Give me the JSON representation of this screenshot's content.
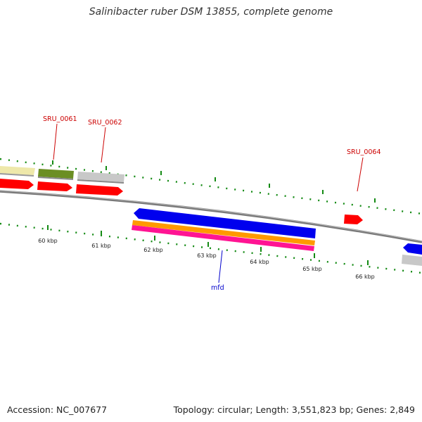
{
  "title": "Salinibacter ruber DSM 13855, complete genome",
  "footer": {
    "accession": "Accession: NC_007677",
    "summary": "Topology: circular; Length: 3,551,823 bp; Genes: 2,849"
  },
  "colors": {
    "plus_cds": "#ff0000",
    "minus_cds": "#0000ee",
    "orange_track": "#ff9900",
    "pink_track": "#ff1493",
    "olive_track": "#6b8e23",
    "khaki_track": "#eee8aa",
    "gray_track": "#c8c8c8",
    "tick": "#138a13",
    "backbone": "#7a7a7a",
    "plus_label": "#cc0000",
    "minus_label": "#0000cc"
  },
  "scale": {
    "unit": "kbp",
    "labels": [
      "60 kbp",
      "61 kbp",
      "62 kbp",
      "63 kbp",
      "64 kbp",
      "65 kbp",
      "66 kbp"
    ]
  },
  "genes": {
    "plus_labels": [
      "SRU_0061",
      "SRU_0062",
      "SRU_0064"
    ],
    "minus_labels": [
      "mfd"
    ]
  }
}
